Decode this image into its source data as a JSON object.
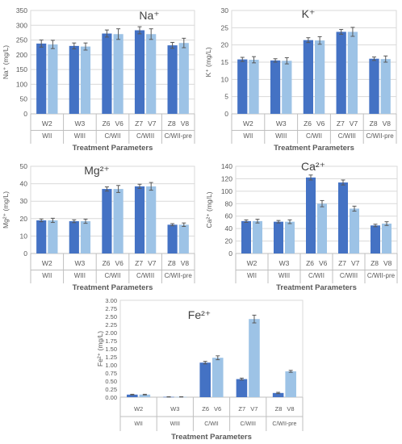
{
  "colors": {
    "dark": "#4472C4",
    "light": "#9DC3E6",
    "axis": "#BFBFBF",
    "grid": "#D9D9D9",
    "text": "#595959",
    "title": "#404040"
  },
  "chart_data": [
    {
      "type": "bar",
      "title": "Na⁺",
      "ylabel": "Na⁺ (mg/L)",
      "xlabel": "Treatment Parameters",
      "ylim": [
        0,
        350
      ],
      "yticks": [
        "0",
        "50",
        "100",
        "150",
        "200",
        "250",
        "300",
        "350"
      ],
      "grid": true,
      "groups": [
        "WII",
        "WIII",
        "C/WII",
        "C/WIII",
        "C/WII-pre"
      ],
      "categories": [
        [
          "W2"
        ],
        [
          "W3"
        ],
        [
          "Z6",
          "V6"
        ],
        [
          "Z7",
          "V7"
        ],
        [
          "Z8",
          "V8"
        ]
      ],
      "series": [
        {
          "values": [
            238,
            230,
            272,
            283,
            232
          ],
          "errors": [
            12,
            10,
            12,
            12,
            10
          ]
        },
        {
          "values": [
            235,
            228,
            270,
            270,
            240
          ],
          "errors": [
            14,
            12,
            18,
            18,
            16
          ]
        }
      ]
    },
    {
      "type": "bar",
      "title": "K⁺",
      "ylabel": "K⁺ (mg/L)",
      "xlabel": "Treatment Parameters",
      "ylim": [
        0,
        30
      ],
      "yticks": [
        "0",
        "5",
        "10",
        "15",
        "20",
        "25",
        "30"
      ],
      "grid": true,
      "groups": [
        "WII",
        "WIII",
        "C/WII",
        "C/WIII",
        "C/WII-pre"
      ],
      "categories": [
        [
          "W2"
        ],
        [
          "W3"
        ],
        [
          "Z6",
          "V6"
        ],
        [
          "Z7",
          "V7"
        ],
        [
          "Z8",
          "V8"
        ]
      ],
      "series": [
        {
          "values": [
            15.8,
            15.5,
            21.4,
            23.8,
            16.0
          ],
          "errors": [
            0.6,
            0.5,
            0.7,
            0.7,
            0.5
          ]
        },
        {
          "values": [
            15.7,
            15.4,
            21.3,
            23.8,
            15.9
          ],
          "errors": [
            0.9,
            0.9,
            1.1,
            1.3,
            0.9
          ]
        }
      ]
    },
    {
      "type": "bar",
      "title": "Mg²⁺",
      "ylabel": "Mg²⁺ (mg/L)",
      "xlabel": "Treatment Parameters",
      "ylim": [
        0,
        50
      ],
      "yticks": [
        "0",
        "10",
        "20",
        "30",
        "40",
        "50"
      ],
      "grid": true,
      "groups": [
        "WII",
        "WIII",
        "C/WII",
        "C/WIII",
        "C/WII-pre"
      ],
      "categories": [
        [
          "W2"
        ],
        [
          "W3"
        ],
        [
          "Z6",
          "V6"
        ],
        [
          "Z7",
          "V7"
        ],
        [
          "Z8",
          "V8"
        ]
      ],
      "series": [
        {
          "values": [
            19,
            18.5,
            37,
            38.5,
            16.5
          ],
          "errors": [
            0.8,
            0.8,
            1.2,
            1.2,
            0.6
          ]
        },
        {
          "values": [
            19,
            18.5,
            37,
            38.5,
            16.5
          ],
          "errors": [
            1.2,
            1.2,
            2.0,
            2.2,
            1.0
          ]
        }
      ]
    },
    {
      "type": "bar",
      "title": "Ca²⁺",
      "ylabel": "Ca²⁺ (mg/L)",
      "xlabel": "Treatment Parameters",
      "ylim": [
        0,
        140
      ],
      "yticks": [
        "0",
        "20",
        "40",
        "60",
        "80",
        "100",
        "120",
        "140"
      ],
      "grid": true,
      "groups": [
        "WII",
        "WIII",
        "C/WII",
        "C/WIII",
        "C/WII-pre"
      ],
      "categories": [
        [
          "W2"
        ],
        [
          "W3"
        ],
        [
          "Z6",
          "V6"
        ],
        [
          "Z7",
          "V7"
        ],
        [
          "Z8",
          "V8"
        ]
      ],
      "series": [
        {
          "values": [
            52,
            51,
            122,
            114,
            45
          ],
          "errors": [
            2,
            2,
            4,
            4,
            2
          ]
        },
        {
          "values": [
            52,
            51,
            80,
            72,
            48
          ],
          "errors": [
            3,
            3,
            5,
            4,
            3
          ]
        }
      ]
    },
    {
      "type": "bar",
      "title": "Fe²⁺",
      "ylabel": "Fe²⁺ (mg/L)",
      "xlabel": "Treatment Parameters",
      "ylim": [
        0,
        3
      ],
      "yticks": [
        "0.00",
        "0.25",
        "0.50",
        "0.75",
        "1.00",
        "1.25",
        "1.50",
        "1.75",
        "2.00",
        "2.25",
        "2.50",
        "2.75",
        "3.00"
      ],
      "grid": false,
      "groups": [
        "WII",
        "WIII",
        "C/WII",
        "C/WIII",
        "C/WII-pre"
      ],
      "categories": [
        [
          "W2"
        ],
        [
          "W3"
        ],
        [
          "Z6",
          "V6"
        ],
        [
          "Z7",
          "V7"
        ],
        [
          "Z8",
          "V8"
        ]
      ],
      "series": [
        {
          "values": [
            0.08,
            0.01,
            1.07,
            0.56,
            0.13
          ],
          "errors": [
            0.01,
            0.005,
            0.04,
            0.03,
            0.02
          ]
        },
        {
          "values": [
            0.08,
            0.01,
            1.22,
            2.42,
            0.8
          ],
          "errors": [
            0.01,
            0.005,
            0.06,
            0.12,
            0.03
          ]
        }
      ]
    }
  ]
}
